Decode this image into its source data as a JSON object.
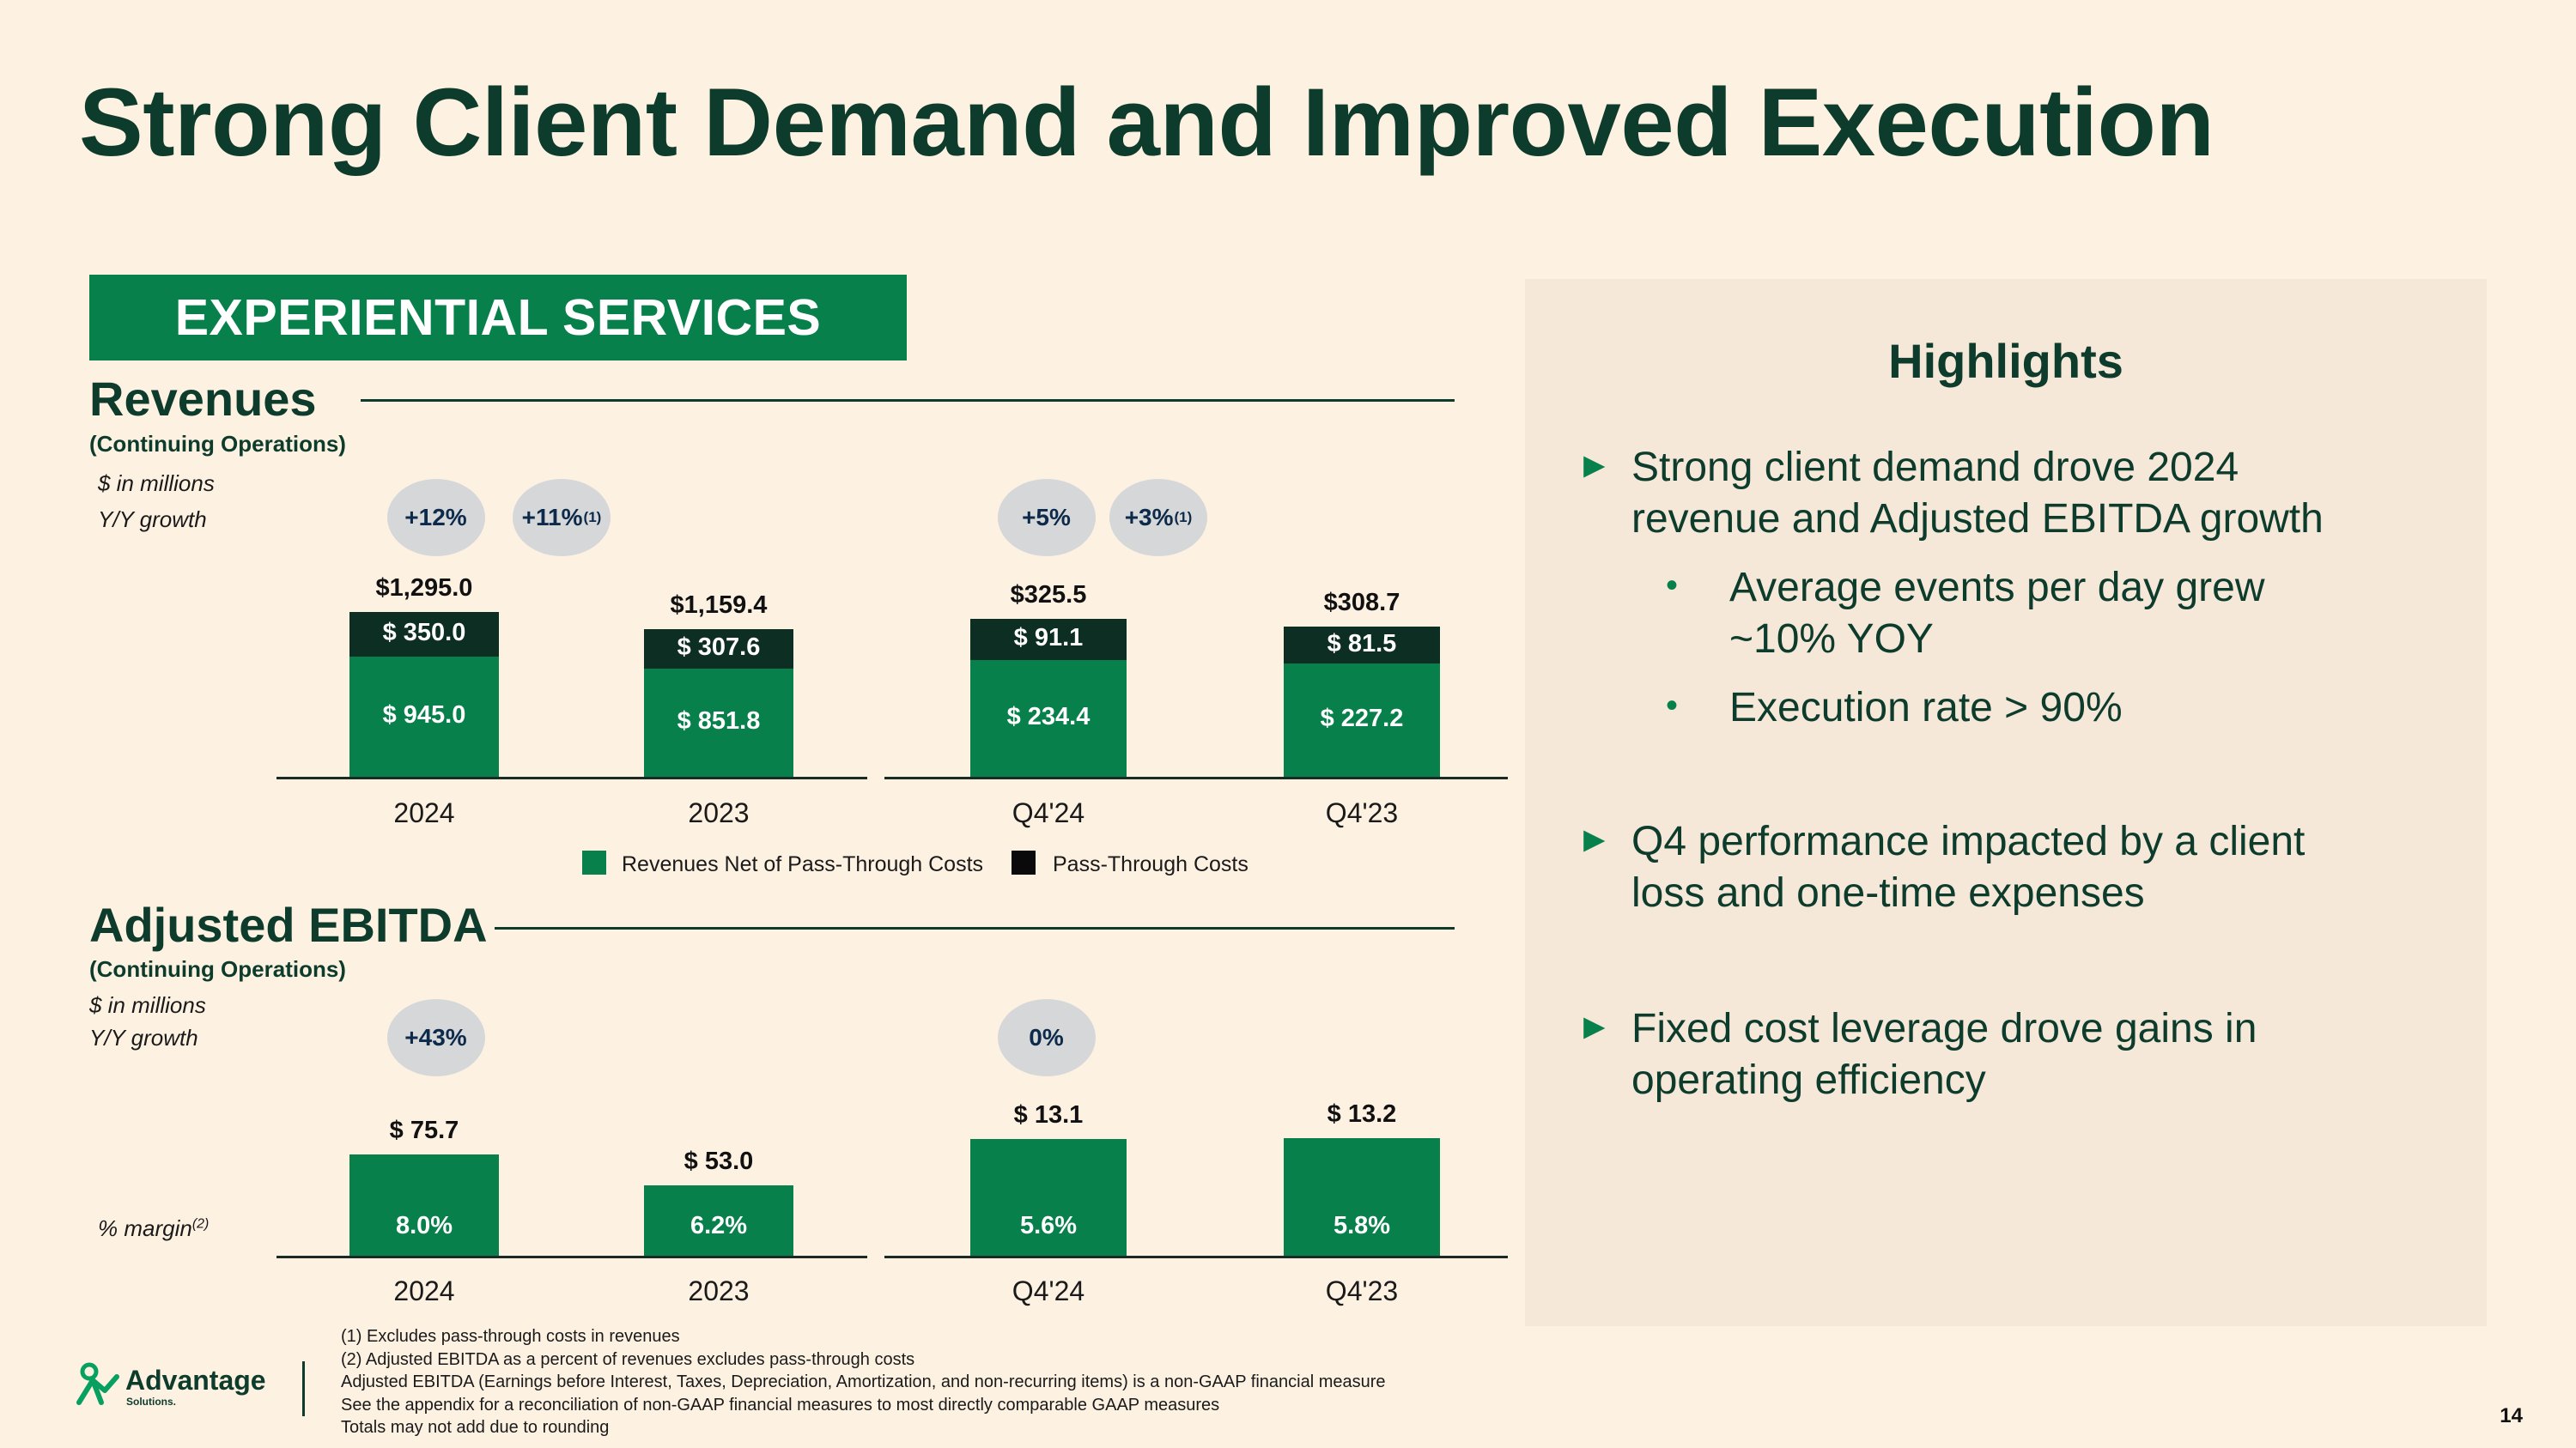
{
  "title": "Strong Client Demand and Improved Execution",
  "section_banner": "EXPERIENTIAL SERVICES",
  "revenues": {
    "heading": "Revenues",
    "subheading": "(Continuing Operations)",
    "units_note": "$ in millions",
    "growth_label": "Y/Y growth",
    "growth_bubbles": [
      {
        "value": "+12%",
        "sup": ""
      },
      {
        "value": "+11%",
        "sup": "(1)"
      },
      {
        "value": "+5%",
        "sup": ""
      },
      {
        "value": "+3%",
        "sup": "(1)"
      }
    ],
    "legend": [
      "Revenues Net of Pass-Through Costs",
      "Pass-Through Costs"
    ]
  },
  "ebitda": {
    "heading": "Adjusted EBITDA",
    "subheading": "(Continuing Operations)",
    "units_note": "$ in millions",
    "growth_label": "Y/Y growth",
    "growth_bubbles": [
      {
        "value": "+43%",
        "sup": ""
      },
      {
        "value": "0%",
        "sup": ""
      }
    ],
    "margin_label": "% margin",
    "margin_sup": "(2)"
  },
  "chart_data": [
    {
      "type": "bar",
      "stacked": true,
      "categories": [
        "2024",
        "2023",
        "Q4'24",
        "Q4'23"
      ],
      "series": [
        {
          "name": "Revenues Net of Pass-Through Costs",
          "values": [
            945.0,
            851.8,
            234.4,
            227.2
          ],
          "labels": [
            "$ 945.0",
            "$ 851.8",
            "$ 234.4",
            "$ 227.2"
          ],
          "color": "#07804b"
        },
        {
          "name": "Pass-Through Costs",
          "values": [
            350.0,
            307.6,
            91.1,
            81.5
          ],
          "labels": [
            "$ 350.0",
            "$ 307.6",
            "$ 91.1",
            "$ 81.5"
          ],
          "color": "#0d2e22"
        }
      ],
      "totals": [
        1295.0,
        1159.4,
        325.5,
        308.7
      ],
      "total_labels": [
        "$1,295.0",
        "$1,159.4",
        "$325.5",
        "$308.7"
      ]
    },
    {
      "type": "bar",
      "categories": [
        "2024",
        "2023",
        "Q4'24",
        "Q4'23"
      ],
      "values": [
        75.7,
        53.0,
        13.1,
        13.2
      ],
      "value_labels": [
        "$ 75.7",
        "$ 53.0",
        "$ 13.1",
        "$ 13.2"
      ],
      "margins": [
        "8.0%",
        "6.2%",
        "5.6%",
        "5.8%"
      ],
      "color": "#07804b"
    }
  ],
  "highlights": {
    "title": "Highlights",
    "points": [
      {
        "text_lines": [
          "Strong client demand drove 2024",
          "revenue and Adjusted EBITDA growth"
        ],
        "sub": [
          {
            "text_lines": [
              "Average events per day grew",
              "~10% YOY"
            ]
          },
          {
            "text_lines": [
              "Execution rate > 90%"
            ]
          }
        ]
      },
      {
        "text_lines": [
          "Q4 performance impacted by a client",
          "loss and one-time expenses"
        ],
        "sub": []
      },
      {
        "text_lines": [
          "Fixed cost leverage drove gains in",
          "operating efficiency"
        ],
        "sub": []
      }
    ],
    "arrow_glyph": "►",
    "bullet_glyph": "•"
  },
  "footnotes": [
    "(1)  Excludes pass-through costs in revenues",
    "(2)  Adjusted EBITDA as a percent of revenues excludes pass-through costs",
    "Adjusted EBITDA (Earnings before Interest, Taxes, Depreciation, Amortization, and non-recurring items) is a non-GAAP financial measure",
    "See the appendix for a reconciliation of non-GAAP financial measures to most directly comparable GAAP measures",
    "Totals may not add due to rounding"
  ],
  "logo": {
    "name": "Advantage",
    "sub": "Solutions."
  },
  "page_number": "14"
}
